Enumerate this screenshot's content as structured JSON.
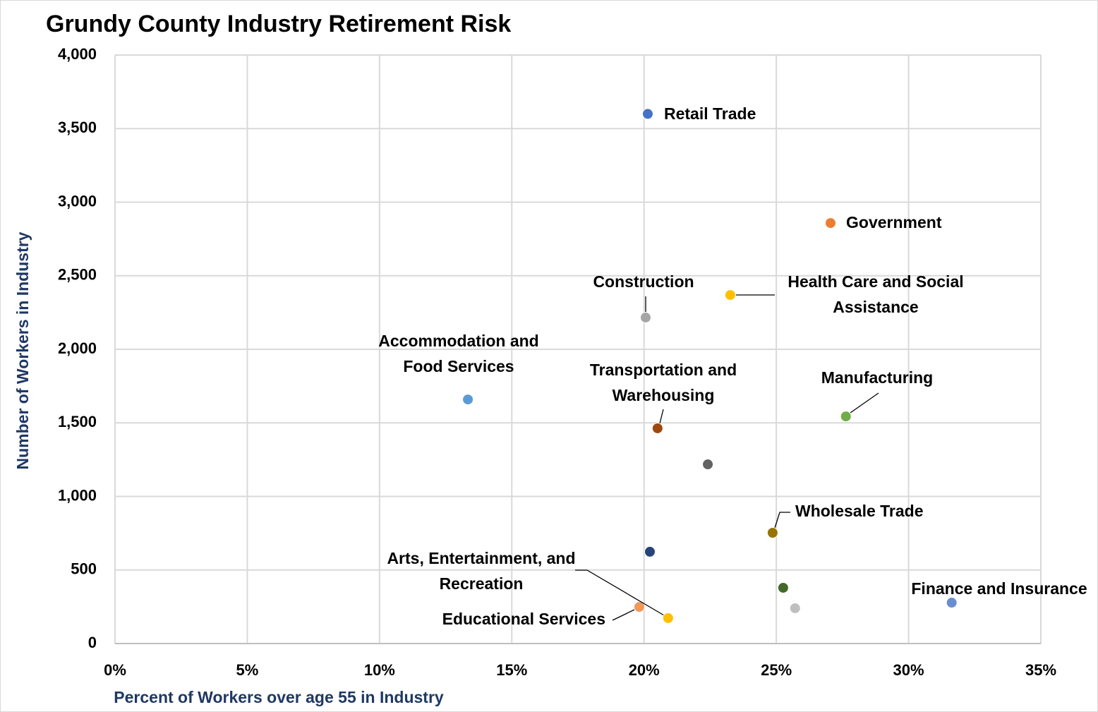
{
  "chart_data": {
    "type": "scatter",
    "title": "Grundy County Industry Retirement Risk",
    "xlabel": "Percent of Workers over age 55 in Industry",
    "ylabel": "Number of Workers in Industry",
    "x": [
      20.14,
      27.05,
      23.26,
      20.06,
      13.34,
      27.63,
      20.51,
      22.41,
      24.86,
      20.22,
      25.26,
      25.71,
      31.63,
      19.82,
      20.91
    ],
    "values": [
      3600,
      2858,
      2369,
      2216,
      1659,
      1544,
      1463,
      1218,
      753,
      624,
      379,
      240,
      278,
      249,
      173
    ],
    "point_labels": [
      "Retail Trade",
      "Government",
      "Health Care and Social Assistance",
      "Construction",
      "Accommodation and Food Services",
      "Manufacturing",
      "Transportation and Warehousing",
      null,
      "Wholesale Trade",
      null,
      null,
      null,
      "Finance and Insurance",
      "Educational Services",
      "Arts, Entertainment, and Recreation"
    ],
    "colors": [
      "#4472c4",
      "#ed7d31",
      "#ffc000",
      "#a5a5a5",
      "#5b9bd5",
      "#70ad47",
      "#9e480e",
      "#636363",
      "#997300",
      "#264478",
      "#43682b",
      "#bfbfbf",
      "#698ed0",
      "#f1975a",
      "#ffc000"
    ],
    "xlim": [
      0,
      35
    ],
    "xticks": [
      {
        "value": 0,
        "label": "0%"
      },
      {
        "value": 5,
        "label": "5%"
      },
      {
        "value": 10,
        "label": "10%"
      },
      {
        "value": 15,
        "label": "15%"
      },
      {
        "value": 20,
        "label": "20%"
      },
      {
        "value": 25,
        "label": "25%"
      },
      {
        "value": 30,
        "label": "30%"
      },
      {
        "value": 35,
        "label": "35%"
      }
    ],
    "ylim": [
      0,
      4000
    ],
    "yticks": [
      0,
      500,
      {
        "value": 1000,
        "label": "1,000"
      },
      {
        "value": 1500,
        "label": "1,500"
      },
      {
        "value": 2000,
        "label": "2,000"
      },
      {
        "value": 2500,
        "label": "2,500"
      },
      {
        "value": 3000,
        "label": "3,000"
      },
      {
        "value": 3500,
        "label": "3,500"
      },
      {
        "value": 4000,
        "label": "4,000"
      }
    ],
    "grid": true
  }
}
